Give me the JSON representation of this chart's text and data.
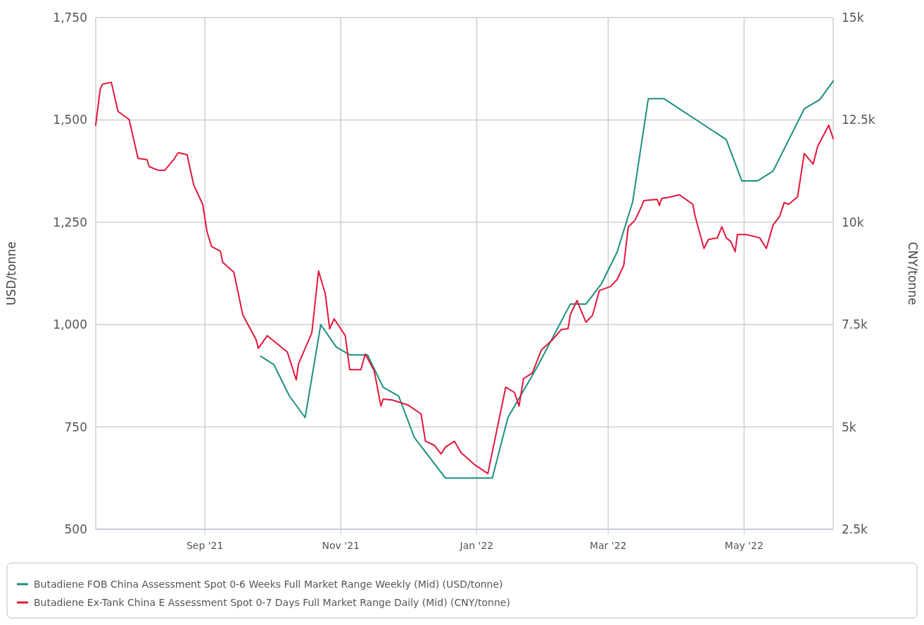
{
  "chart_data": {
    "type": "line",
    "ylabel": "USD/tonne",
    "y2label": "CNY/tonne",
    "xlim": [
      "2021-07-14",
      "2022-06-10"
    ],
    "xticks": [
      {
        "value": "2021-09-01",
        "label": "Sep '21"
      },
      {
        "value": "2021-11-01",
        "label": "Nov '21"
      },
      {
        "value": "2022-01-01",
        "label": "Jan '22"
      },
      {
        "value": "2022-03-01",
        "label": "Mar '22"
      },
      {
        "value": "2022-05-01",
        "label": "May '22"
      }
    ],
    "ylim": [
      500,
      1750
    ],
    "yticks": [
      500,
      750,
      {
        "value": 1000,
        "label": "1,000"
      },
      {
        "value": 1250,
        "label": "1,250"
      },
      {
        "value": 1500,
        "label": "1,500"
      },
      {
        "value": 1750,
        "label": "1,750"
      }
    ],
    "y2lim": [
      2500,
      15000
    ],
    "y2ticks": [
      {
        "value": 2500,
        "label": "2.5k"
      },
      {
        "value": 5000,
        "label": "5k"
      },
      {
        "value": 7500,
        "label": "7.5k"
      },
      {
        "value": 10000,
        "label": "10k"
      },
      {
        "value": 12500,
        "label": "12.5k"
      },
      {
        "value": 15000,
        "label": "15k"
      }
    ],
    "grid": true,
    "legend": "bottom",
    "series": [
      {
        "name": "Butadiene FOB China Assessment Spot 0-6 Weeks Full Market Range Weekly (Mid) (USD/tonne)",
        "color": "#1b8f7f",
        "x": [
          "2021-09-26",
          "2021-10-02",
          "2021-10-09",
          "2021-10-16",
          "2021-10-23",
          "2021-10-30",
          "2021-11-05",
          "2021-11-13",
          "2021-11-20",
          "2021-11-27",
          "2021-12-04",
          "2021-12-18",
          "2022-01-08",
          "2022-01-15",
          "2022-01-28",
          "2022-02-12",
          "2022-02-19",
          "2022-02-26",
          "2022-03-05",
          "2022-03-12",
          "2022-03-19",
          "2022-03-26",
          "2022-04-23",
          "2022-04-30",
          "2022-05-07",
          "2022-05-14",
          "2022-05-28",
          "2022-06-04",
          "2022-06-10"
        ],
        "values": [
          923,
          902,
          825,
          773,
          1000,
          945,
          926,
          926,
          847,
          825,
          724,
          625,
          625,
          773,
          895,
          1050,
          1050,
          1100,
          1177,
          1300,
          1552,
          1552,
          1452,
          1351,
          1351,
          1375,
          1527,
          1550,
          1595
        ]
      },
      {
        "name": "Butadiene Ex-Tank China E Assessment Spot 0-7 Days Full Market Range Daily (Mid) (CNY/tonne)",
        "color": "#e3173a",
        "axis": "y2",
        "x": [
          "2021-07-14",
          "2021-07-16",
          "2021-07-17",
          "2021-07-21",
          "2021-07-24",
          "2021-07-29",
          "2021-08-02",
          "2021-08-06",
          "2021-08-07",
          "2021-08-11",
          "2021-08-14",
          "2021-08-18",
          "2021-08-20",
          "2021-08-24",
          "2021-08-27",
          "2021-08-31",
          "2021-09-02",
          "2021-09-04",
          "2021-09-08",
          "2021-09-09",
          "2021-09-14",
          "2021-09-18",
          "2021-09-24",
          "2021-09-25",
          "2021-09-29",
          "2021-10-08",
          "2021-10-12",
          "2021-10-13",
          "2021-10-19",
          "2021-10-22",
          "2021-10-25",
          "2021-10-27",
          "2021-10-29",
          "2021-11-03",
          "2021-11-05",
          "2021-11-10",
          "2021-11-12",
          "2021-11-16",
          "2021-11-19",
          "2021-11-20",
          "2021-11-24",
          "2021-12-01",
          "2021-12-07",
          "2021-12-09",
          "2021-12-13",
          "2021-12-16",
          "2021-12-18",
          "2021-12-22",
          "2021-12-25",
          "2021-12-31",
          "2022-01-06",
          "2022-01-14",
          "2022-01-18",
          "2022-01-20",
          "2022-01-22",
          "2022-01-26",
          "2022-01-30",
          "2022-02-04",
          "2022-02-08",
          "2022-02-11",
          "2022-02-12",
          "2022-02-15",
          "2022-02-19",
          "2022-02-22",
          "2022-02-25",
          "2022-03-02",
          "2022-03-05",
          "2022-03-08",
          "2022-03-10",
          "2022-03-13",
          "2022-03-16",
          "2022-03-17",
          "2022-03-23",
          "2022-03-24",
          "2022-03-25",
          "2022-03-29",
          "2022-04-02",
          "2022-04-08",
          "2022-04-09",
          "2022-04-13",
          "2022-04-15",
          "2022-04-19",
          "2022-04-21",
          "2022-04-23",
          "2022-04-25",
          "2022-04-27",
          "2022-04-28",
          "2022-05-02",
          "2022-05-08",
          "2022-05-11",
          "2022-05-14",
          "2022-05-17",
          "2022-05-19",
          "2022-05-21",
          "2022-05-25",
          "2022-05-28",
          "2022-06-01",
          "2022-06-03",
          "2022-06-08",
          "2022-06-10"
        ],
        "values": [
          12370,
          13250,
          13370,
          13420,
          12710,
          12510,
          11560,
          11530,
          11360,
          11270,
          11270,
          11530,
          11700,
          11650,
          10910,
          10440,
          9760,
          9410,
          9290,
          9020,
          8780,
          7740,
          7130,
          6920,
          7230,
          6830,
          6150,
          6540,
          7300,
          8810,
          8260,
          7400,
          7640,
          7230,
          6400,
          6400,
          6780,
          6370,
          5510,
          5680,
          5660,
          5540,
          5320,
          4650,
          4550,
          4340,
          4510,
          4650,
          4370,
          4080,
          3860,
          5970,
          5840,
          5510,
          6180,
          6320,
          6880,
          7130,
          7380,
          7400,
          7740,
          8090,
          7560,
          7730,
          8330,
          8430,
          8600,
          8950,
          9880,
          10050,
          10390,
          10530,
          10560,
          10410,
          10580,
          10620,
          10670,
          10440,
          10150,
          9360,
          9580,
          9620,
          9890,
          9620,
          9530,
          9280,
          9700,
          9700,
          9620,
          9360,
          9930,
          10150,
          10480,
          10440,
          10620,
          11680,
          11420,
          11850,
          12370,
          12040
        ]
      }
    ]
  }
}
